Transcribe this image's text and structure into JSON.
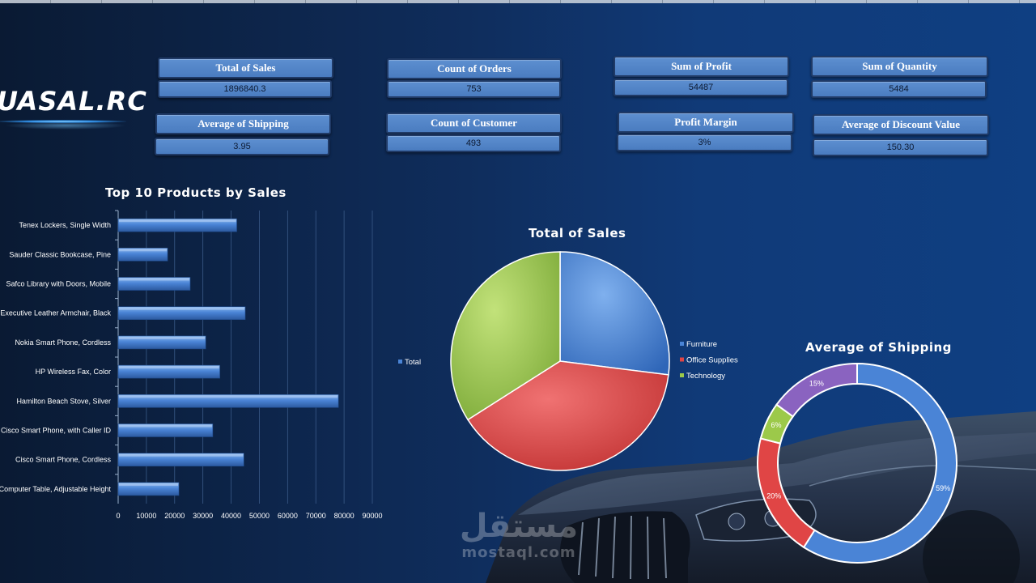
{
  "logo": {
    "text": "UASAL.RC"
  },
  "kpis": {
    "total_sales": {
      "label": "Total of Sales",
      "value": "1896840.3"
    },
    "count_orders": {
      "label": "Count of Orders",
      "value": "753"
    },
    "sum_profit": {
      "label": "Sum of Profit",
      "value": "54487"
    },
    "sum_quantity": {
      "label": "Sum of Quantity",
      "value": "5484"
    },
    "avg_shipping": {
      "label": "Average of Shipping",
      "value": "3.95"
    },
    "count_customer": {
      "label": "Count of Customer",
      "value": "493"
    },
    "profit_margin": {
      "label": "Profit Margin",
      "value": "3%"
    },
    "avg_discount": {
      "label": "Average of Discount Value",
      "value": "150.30"
    }
  },
  "watermark": {
    "arabic": "مستقل",
    "latin": "mostaql.com"
  },
  "colors": {
    "bar": "#4a84d6",
    "furniture": "#4a84d6",
    "office": "#e04545",
    "technology": "#9cc94a",
    "purple": "#8a63c0"
  },
  "chart_data": [
    {
      "type": "bar",
      "orientation": "horizontal",
      "title": "Top 10 Products by Sales",
      "categories": [
        "Tenex Lockers, Single Width",
        "Sauder Classic Bookcase, Pine",
        "Safco Library with Doors, Mobile",
        "Executive Leather Armchair, Black",
        "Nokia Smart Phone, Cordless",
        "HP Wireless Fax, Color",
        "Hamilton Beach Stove, Silver",
        "Cisco Smart Phone, with Caller ID",
        "Cisco Smart Phone, Cordless",
        "Computer Table, Adjustable Height"
      ],
      "values": [
        42000,
        17500,
        25500,
        45000,
        31000,
        36000,
        78000,
        33500,
        44500,
        21500
      ],
      "xlim": [
        0,
        90000
      ],
      "xticks": [
        "0",
        "10000",
        "20000",
        "30000",
        "40000",
        "50000",
        "60000",
        "70000",
        "80000",
        "90000"
      ],
      "grid": true
    },
    {
      "type": "pie",
      "title": "Total of Sales",
      "categories": [
        "Furniture",
        "Office Supplies",
        "Technology"
      ],
      "values": [
        27,
        39,
        34
      ],
      "series_legend": "Total",
      "legend": "right"
    },
    {
      "type": "pie",
      "subtype": "donut",
      "title": "Average of Shipping",
      "categories": [
        "",
        "",
        "",
        ""
      ],
      "values": [
        59,
        20,
        6,
        15
      ],
      "labels": [
        "59%",
        "20%",
        "6%",
        "15%"
      ]
    }
  ]
}
